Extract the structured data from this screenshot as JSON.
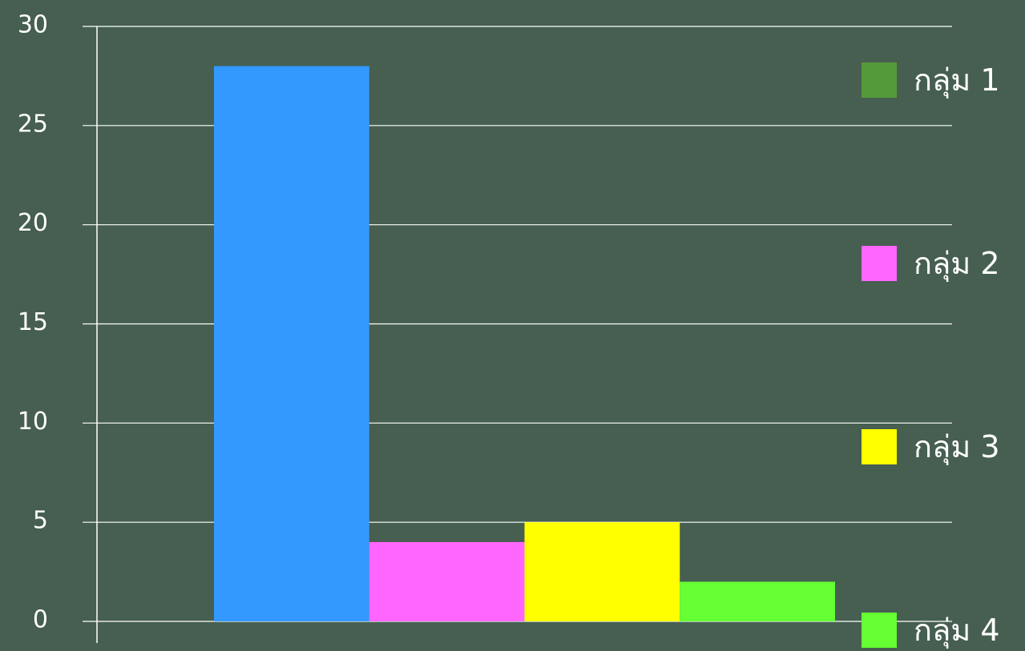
{
  "chart_data": {
    "type": "bar",
    "title": "",
    "xlabel": "",
    "ylabel": "",
    "ylim": [
      0,
      30
    ],
    "yticks": [
      0,
      5,
      10,
      15,
      20,
      25,
      30
    ],
    "grid": true,
    "legend_position": "right",
    "categories": [
      ""
    ],
    "series": [
      {
        "name": "กลุ่ม 1",
        "values": [
          28
        ],
        "bar_color": "#3399ff",
        "legend_color": "#559a3a"
      },
      {
        "name": "กลุ่ม 2",
        "values": [
          4
        ],
        "bar_color": "#ff66ff",
        "legend_color": "#ff66ff"
      },
      {
        "name": "กลุ่ม 3",
        "values": [
          5
        ],
        "bar_color": "#ffff00",
        "legend_color": "#ffff00"
      },
      {
        "name": "กลุ่ม 4",
        "values": [
          2
        ],
        "bar_color": "#66ff33",
        "legend_color": "#66ff33"
      }
    ]
  },
  "colors": {
    "background": "#465f51",
    "axis": "#ffffff",
    "text": "#ffffff"
  }
}
